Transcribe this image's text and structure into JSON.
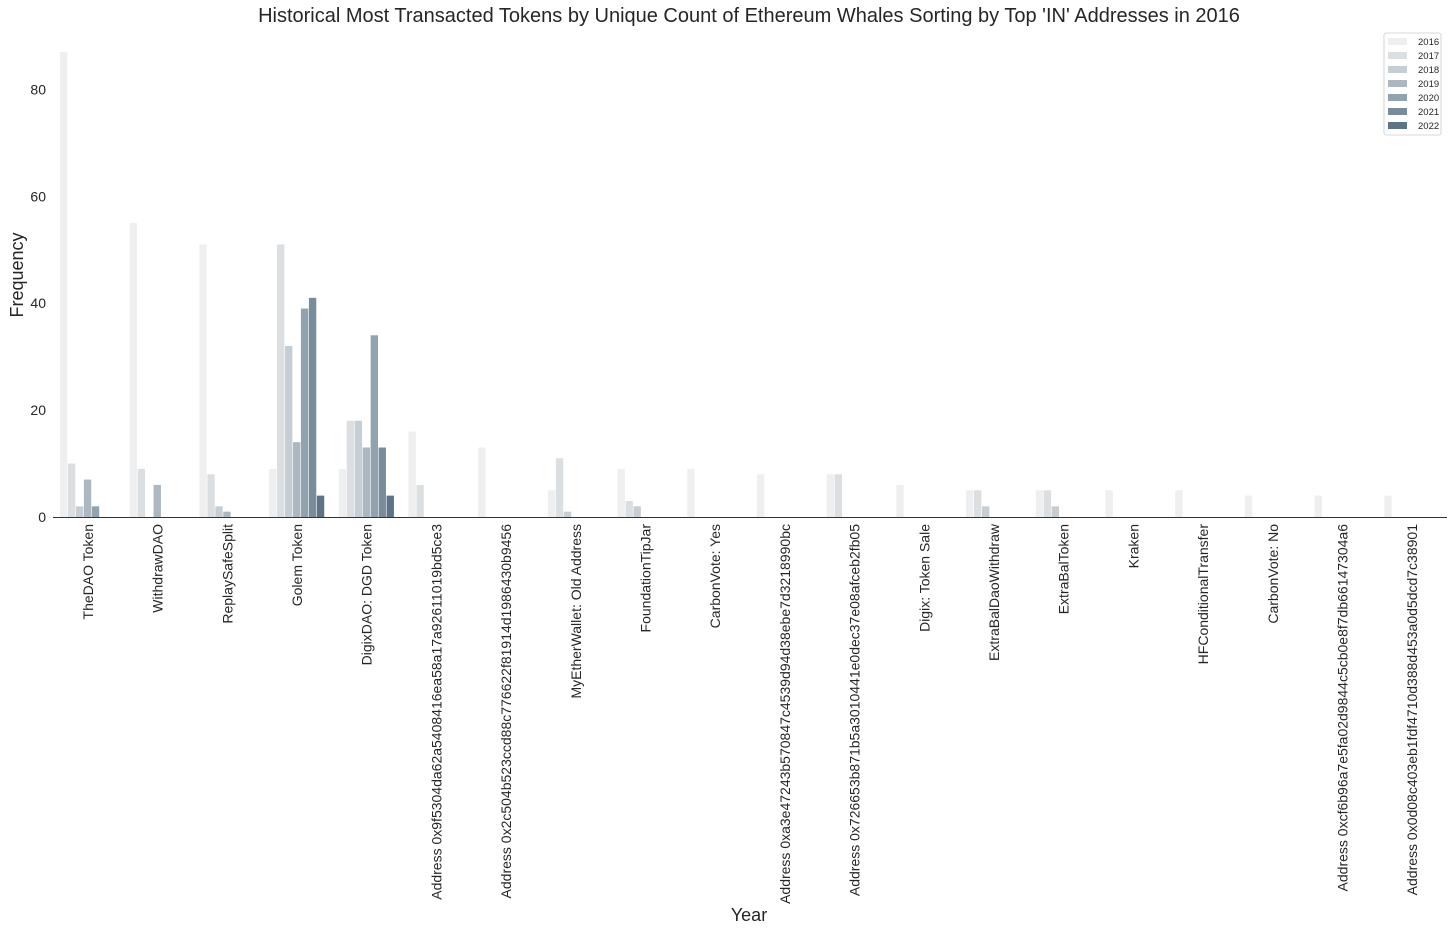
{
  "chart_data": {
    "type": "bar",
    "title": "Historical Most Transacted Tokens by Unique Count of Ethereum Whales Sorting by Top 'IN' Addresses in 2016",
    "xlabel": "Year",
    "ylabel": "Frequency",
    "ylim": [
      0,
      87
    ],
    "yticks": [
      0,
      20,
      40,
      60,
      80
    ],
    "grid": false,
    "legend_position": "top-right",
    "categories": [
      "TheDAO Token",
      "WithdrawDAO",
      "ReplaySafeSplit",
      "Golem Token",
      "DigixDAO: DGD Token",
      "Address 0x9f5304da62a5408416ea58a17a92611019bd5ce3",
      "Address 0x2c504b523ccd88c776622f81914d1986430b9456",
      "MyEtherWallet: Old Address",
      "FoundationTipJar",
      "CarbonVote: Yes",
      "Address 0xa3e47243b570847c4539d94d38ebe7d3218990bc",
      "Address 0x726653b871b5a3010441e0dec37e08afceb2fb05",
      "Digix: Token Sale",
      "ExtraBalDaoWithdraw",
      "ExtraBalToken",
      "Kraken",
      "HFConditionalTransfer",
      "CarbonVote: No",
      "Address 0xcf6b96a7e5fa02d9844c5cb0e8f7db66147304a6",
      "Address 0x0d08c403eb1fdf4710d388d453a0d5dcd7c38901"
    ],
    "series": [
      {
        "name": "2016",
        "color": "#eeeff0",
        "values": [
          87,
          55,
          51,
          9,
          9,
          16,
          13,
          5,
          9,
          9,
          8,
          8,
          6,
          5,
          5,
          5,
          5,
          4,
          4,
          4
        ]
      },
      {
        "name": "2017",
        "color": "#dcdfe2",
        "values": [
          10,
          9,
          8,
          51,
          18,
          6,
          0,
          11,
          3,
          0,
          0,
          8,
          0,
          5,
          5,
          0,
          0,
          0,
          0,
          0
        ]
      },
      {
        "name": "2018",
        "color": "#c6ced5",
        "values": [
          2,
          0,
          2,
          32,
          18,
          0,
          0,
          1,
          2,
          0,
          0,
          0,
          0,
          2,
          2,
          0,
          0,
          0,
          0,
          0
        ]
      },
      {
        "name": "2019",
        "color": "#abb8c2",
        "values": [
          7,
          6,
          1,
          14,
          13,
          0,
          0,
          0,
          0,
          0,
          0,
          0,
          0,
          0,
          0,
          0,
          0,
          0,
          0,
          0
        ]
      },
      {
        "name": "2020",
        "color": "#92a3b0",
        "values": [
          2,
          0,
          0,
          39,
          34,
          0,
          0,
          0,
          0,
          0,
          0,
          0,
          0,
          0,
          0,
          0,
          0,
          0,
          0,
          0
        ]
      },
      {
        "name": "2021",
        "color": "#788c9c",
        "values": [
          0,
          0,
          0,
          41,
          13,
          0,
          0,
          0,
          0,
          0,
          0,
          0,
          0,
          0,
          0,
          0,
          0,
          0,
          0,
          0
        ]
      },
      {
        "name": "2022",
        "color": "#5d7388",
        "values": [
          0,
          0,
          0,
          4,
          4,
          0,
          0,
          0,
          0,
          0,
          0,
          0,
          0,
          0,
          0,
          0,
          0,
          0,
          0,
          0
        ]
      }
    ]
  }
}
